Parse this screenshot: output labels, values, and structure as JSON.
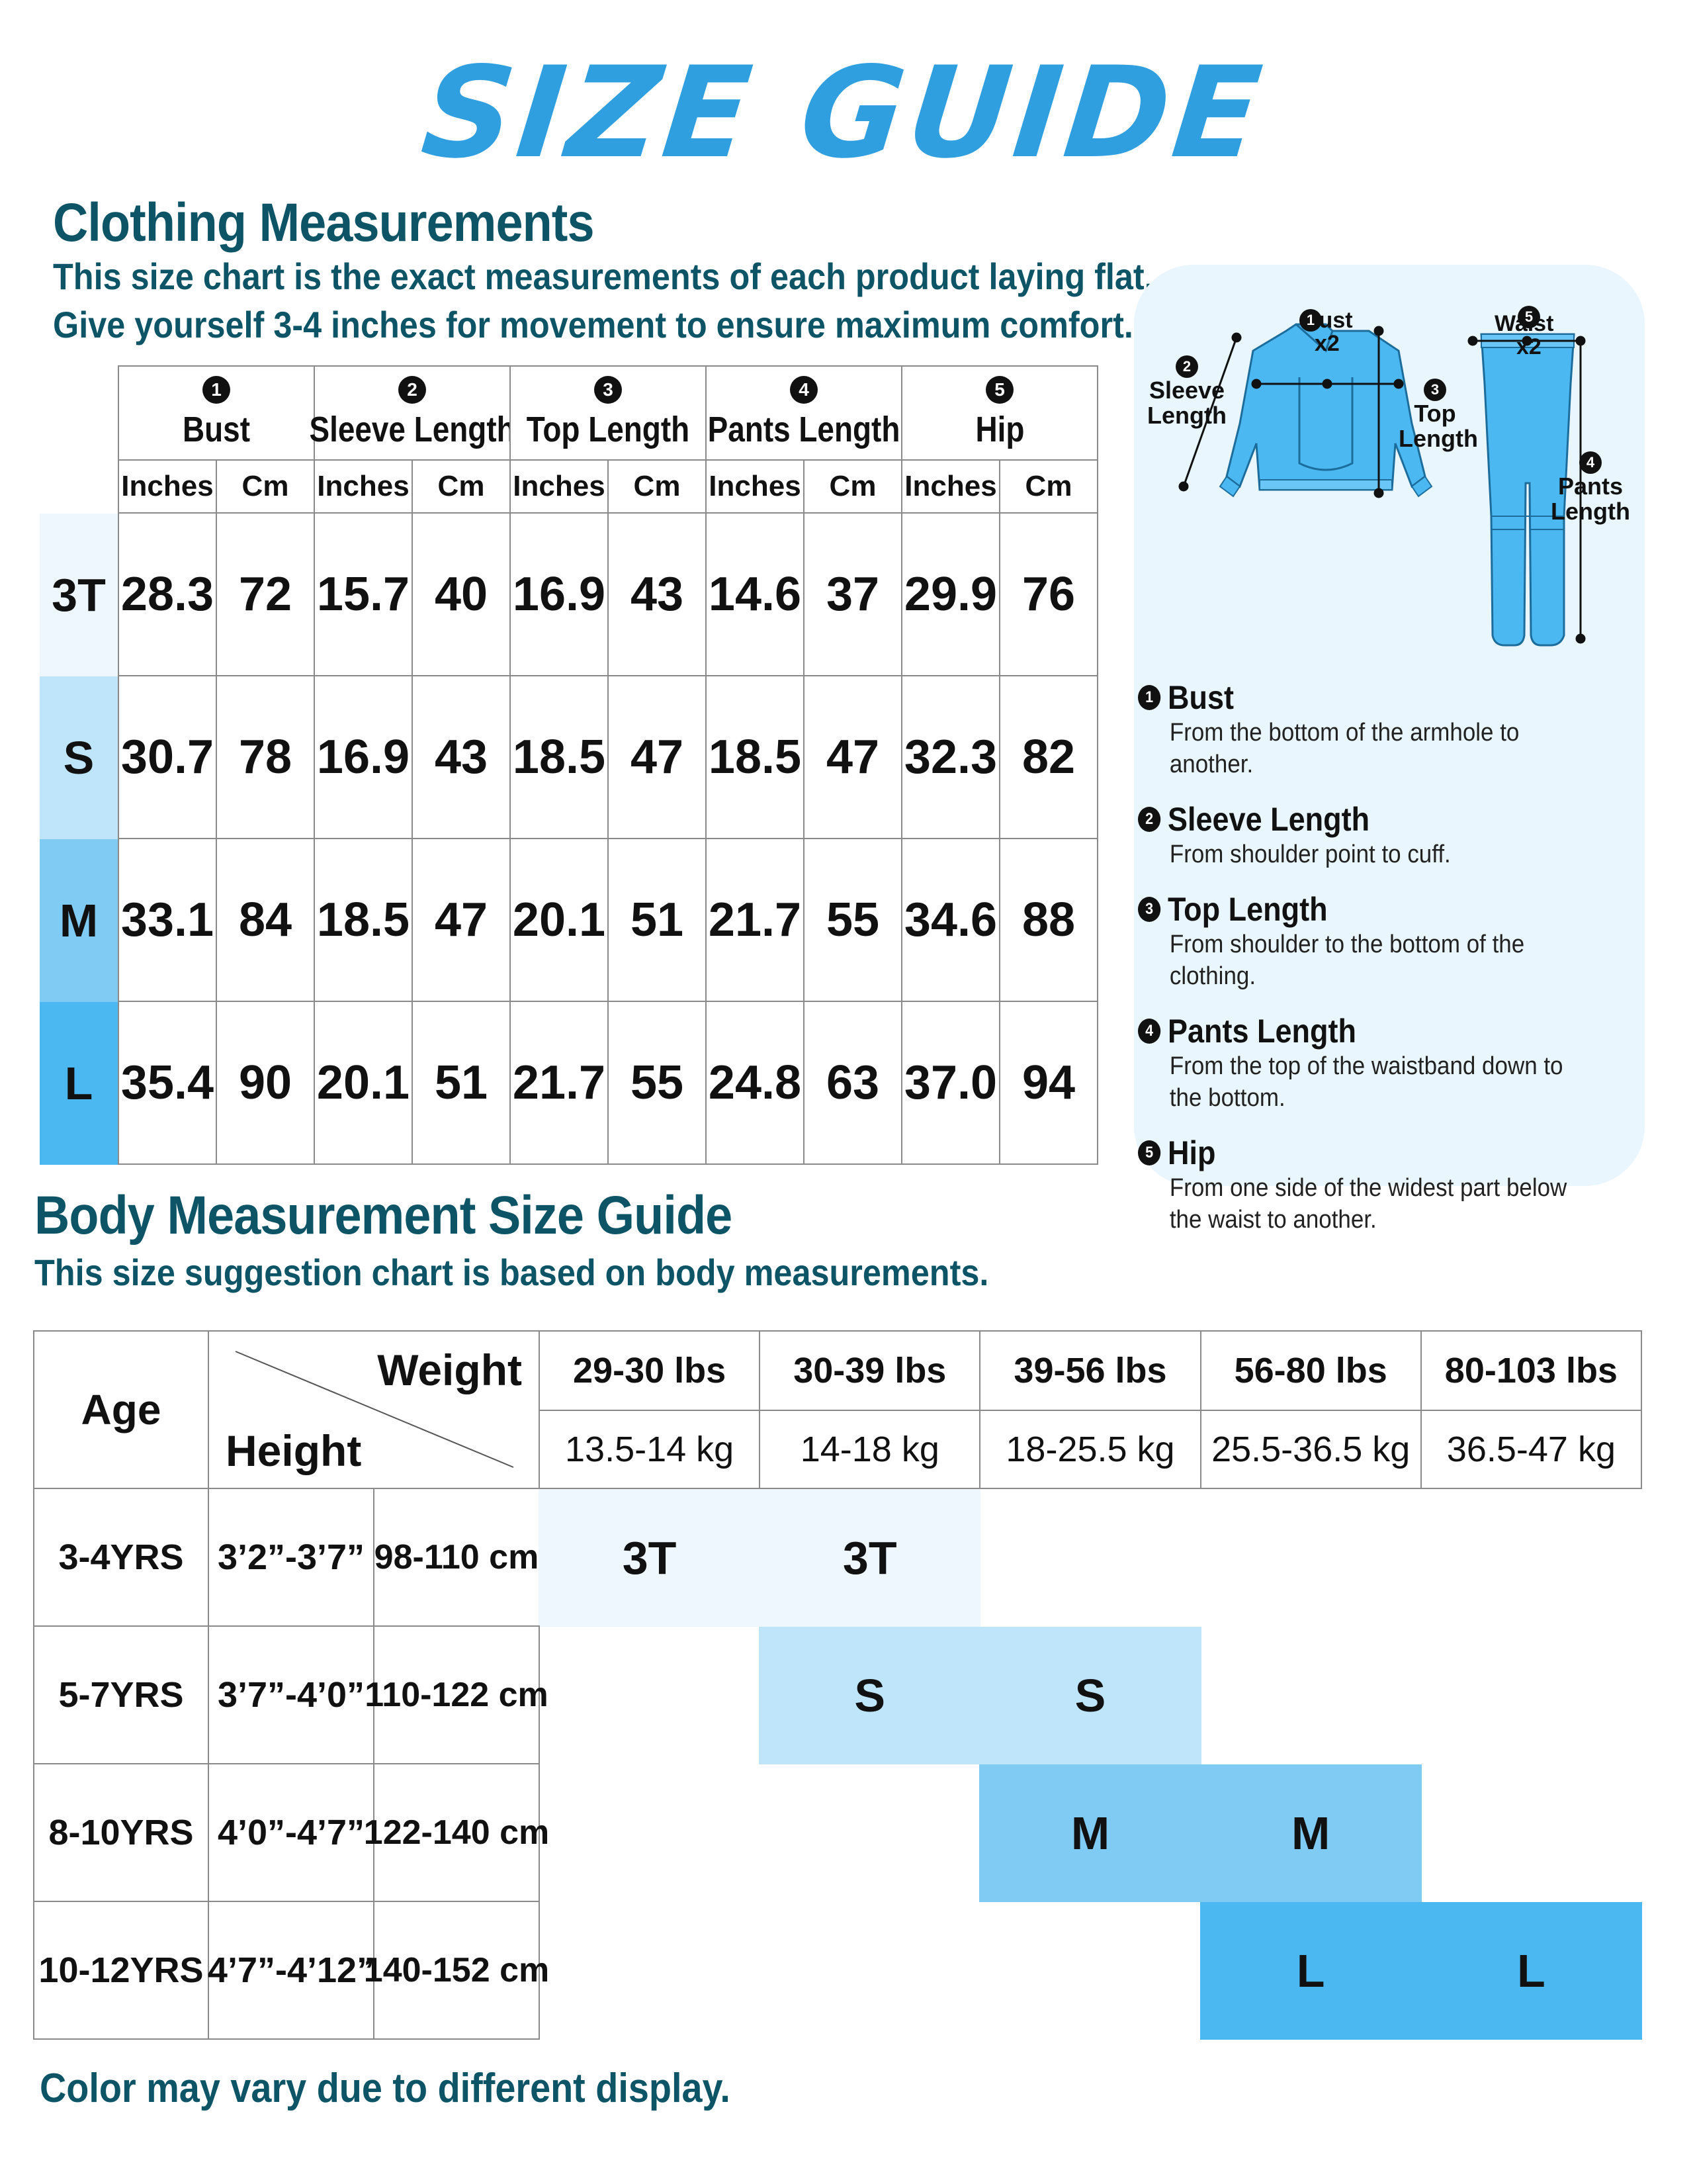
{
  "title": "SIZE GUIDE",
  "clothing": {
    "heading": "Clothing Measurements",
    "line1": "This size chart is the exact measurements of each product laying flat.",
    "line2": "Give yourself 3-4 inches for movement to ensure maximum comfort.",
    "columns": [
      {
        "num": "1",
        "name": "Bust"
      },
      {
        "num": "2",
        "name": "Sleeve Length"
      },
      {
        "num": "3",
        "name": "Top Length"
      },
      {
        "num": "4",
        "name": "Pants Length"
      },
      {
        "num": "5",
        "name": "Hip"
      }
    ],
    "unit_inches": "Inches",
    "unit_cm": "Cm",
    "rows": [
      {
        "size": "3T",
        "color": "#eef7fe",
        "values": [
          "28.3",
          "72",
          "15.7",
          "40",
          "16.9",
          "43",
          "14.6",
          "37",
          "29.9",
          "76"
        ]
      },
      {
        "size": "S",
        "color": "#bfe5fb",
        "values": [
          "30.7",
          "78",
          "16.9",
          "43",
          "18.5",
          "47",
          "18.5",
          "47",
          "32.3",
          "82"
        ]
      },
      {
        "size": "M",
        "color": "#80cbf4",
        "values": [
          "33.1",
          "84",
          "18.5",
          "47",
          "20.1",
          "51",
          "21.7",
          "55",
          "34.6",
          "88"
        ]
      },
      {
        "size": "L",
        "color": "#4cb8f2",
        "values": [
          "35.4",
          "90",
          "20.1",
          "51",
          "21.7",
          "55",
          "24.8",
          "63",
          "37.0",
          "94"
        ]
      }
    ]
  },
  "diagram": {
    "bust": "Bust",
    "bust_x2": "x2",
    "sleeve": "Sleeve Length",
    "top": "Top Length",
    "waist": "Waist",
    "waist_x2": "x2",
    "pants": "Pants Length",
    "garment_color": "#4cb8f2",
    "panel_color": "#eaf6fe"
  },
  "definitions": [
    {
      "num": "1",
      "title": "Bust",
      "desc": "From the bottom of the armhole to another."
    },
    {
      "num": "2",
      "title": "Sleeve Length",
      "desc": "From shoulder point to cuff."
    },
    {
      "num": "3",
      "title": "Top Length",
      "desc": "From shoulder to the bottom of the clothing."
    },
    {
      "num": "4",
      "title": "Pants Length",
      "desc": "From the top of the waistband down to the bottom."
    },
    {
      "num": "5",
      "title": "Hip",
      "desc": "From one side of the widest part below the waist to another."
    }
  ],
  "body": {
    "heading": "Body Measurement Size Guide",
    "sub": "This size suggestion chart is based on body measurements.",
    "age_label": "Age",
    "weight_label": "Weight",
    "height_label": "Height",
    "weights_lbs": [
      "29-30 lbs",
      "30-39 lbs",
      "39-56 lbs",
      "56-80 lbs",
      "80-103 lbs"
    ],
    "weights_kg": [
      "13.5-14 kg",
      "14-18 kg",
      "18-25.5 kg",
      "25.5-36.5 kg",
      "36.5-47 kg"
    ],
    "rows": [
      {
        "age": "3-4YRS",
        "ft": "3’2”-3’7”",
        "cm": "98-110 cm",
        "size": "3T",
        "color": "#eef7fe"
      },
      {
        "age": "5-7YRS",
        "ft": "3’7”-4’0”",
        "cm": "110-122 cm",
        "size": "S",
        "color": "#bfe5fb"
      },
      {
        "age": "8-10YRS",
        "ft": "4’0”-4’7”",
        "cm": "122-140 cm",
        "size": "M",
        "color": "#80cbf4"
      },
      {
        "age": "10-12YRS",
        "ft": "4’7”-4’12”",
        "cm": "140-152 cm",
        "size": "L",
        "color": "#4cb8f2"
      }
    ]
  },
  "footer": "Color may vary due to different display.",
  "colors": {
    "title": "#2f9fe0",
    "heading": "#0d5566"
  }
}
